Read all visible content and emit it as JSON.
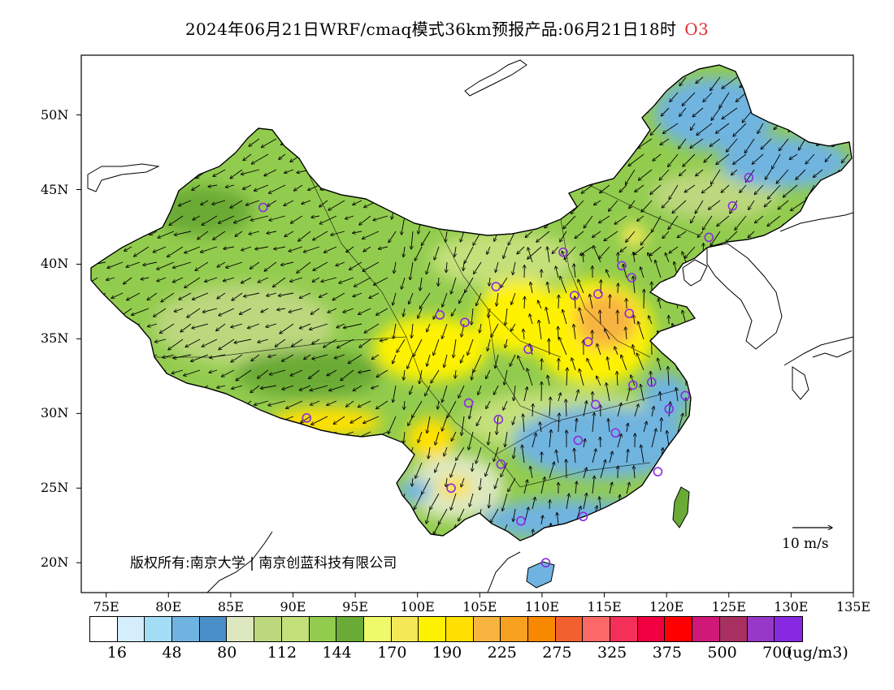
{
  "title": {
    "text": "2024年06月21日WRF/cmaq模式36km预报产品:06月21日18时",
    "variable": "O3"
  },
  "axes": {
    "lat_labels": [
      "20N",
      "25N",
      "30N",
      "35N",
      "40N",
      "45N",
      "50N"
    ],
    "lat_values": [
      20,
      25,
      30,
      35,
      40,
      45,
      50
    ],
    "lon_labels": [
      "75E",
      "80E",
      "85E",
      "90E",
      "95E",
      "100E",
      "105E",
      "110E",
      "115E",
      "120E",
      "125E",
      "130E",
      "135E"
    ],
    "lon_values": [
      75,
      80,
      85,
      90,
      95,
      100,
      105,
      110,
      115,
      120,
      125,
      130,
      135
    ],
    "lon_range": [
      73,
      135
    ],
    "lat_range": [
      18,
      54
    ]
  },
  "wind_reference": {
    "label": "10 m/s",
    "value": 10
  },
  "copyright": "版权所有:南京大学 | 南京创蓝科技有限公司",
  "legend": {
    "unit": "(ug/m3)",
    "colors": [
      "#ffffff",
      "#d4eefb",
      "#a3dcf5",
      "#6fb4e0",
      "#4a8fc8",
      "#dde8c0",
      "#bcd77e",
      "#c4e07a",
      "#92cc4e",
      "#6aaa36",
      "#eefa6a",
      "#f4e856",
      "#fff200",
      "#ffe000",
      "#f8b440",
      "#f8a020",
      "#f88800",
      "#f26030",
      "#fa6868",
      "#f43058",
      "#f00040",
      "#ff0000",
      "#d01878",
      "#a83060",
      "#9838c8",
      "#8828e0"
    ],
    "tick_labels": [
      "16",
      "48",
      "80",
      "112",
      "144",
      "170",
      "190",
      "225",
      "275",
      "325",
      "375",
      "500",
      "700"
    ]
  },
  "stations": [
    {
      "lon": 87.6,
      "lat": 43.8
    },
    {
      "lon": 91.1,
      "lat": 29.7
    },
    {
      "lon": 101.8,
      "lat": 36.6
    },
    {
      "lon": 103.8,
      "lat": 36.1
    },
    {
      "lon": 106.3,
      "lat": 38.5
    },
    {
      "lon": 111.7,
      "lat": 40.8
    },
    {
      "lon": 116.4,
      "lat": 39.9
    },
    {
      "lon": 117.2,
      "lat": 39.1
    },
    {
      "lon": 114.5,
      "lat": 38.0
    },
    {
      "lon": 112.6,
      "lat": 37.9
    },
    {
      "lon": 117.0,
      "lat": 36.7
    },
    {
      "lon": 113.7,
      "lat": 34.8
    },
    {
      "lon": 108.9,
      "lat": 34.3
    },
    {
      "lon": 104.1,
      "lat": 30.7
    },
    {
      "lon": 106.5,
      "lat": 29.6
    },
    {
      "lon": 102.7,
      "lat": 25.0
    },
    {
      "lon": 106.7,
      "lat": 26.6
    },
    {
      "lon": 108.3,
      "lat": 22.8
    },
    {
      "lon": 113.3,
      "lat": 23.1
    },
    {
      "lon": 110.3,
      "lat": 20.0
    },
    {
      "lon": 112.9,
      "lat": 28.2
    },
    {
      "lon": 115.9,
      "lat": 28.7
    },
    {
      "lon": 114.3,
      "lat": 30.6
    },
    {
      "lon": 117.3,
      "lat": 31.9
    },
    {
      "lon": 118.8,
      "lat": 32.1
    },
    {
      "lon": 120.2,
      "lat": 30.3
    },
    {
      "lon": 121.5,
      "lat": 31.2
    },
    {
      "lon": 119.3,
      "lat": 26.1
    },
    {
      "lon": 123.4,
      "lat": 41.8
    },
    {
      "lon": 125.3,
      "lat": 43.9
    },
    {
      "lon": 126.6,
      "lat": 45.8
    }
  ]
}
